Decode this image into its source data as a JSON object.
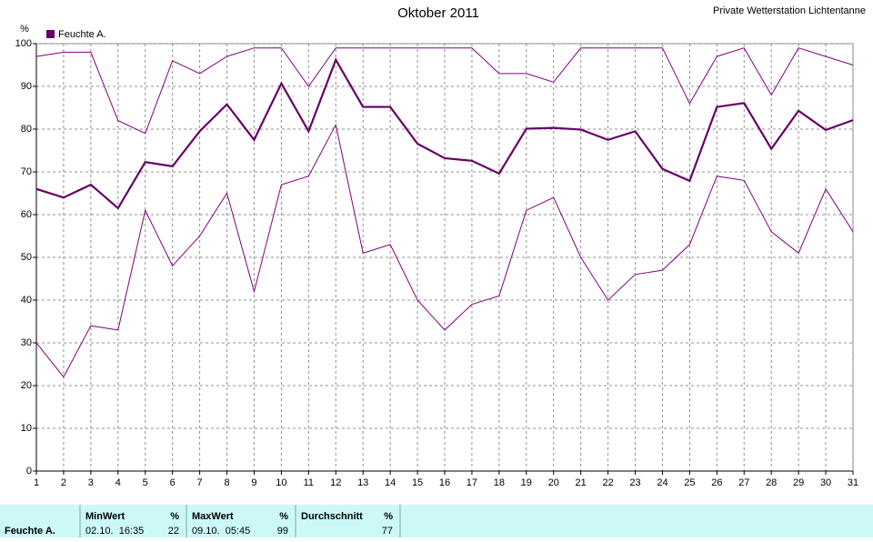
{
  "chart_data": {
    "type": "line",
    "title": "Oktober 2011",
    "subtitle": "Private Wetterstation Lichtentanne",
    "y_label": "%",
    "x": [
      1,
      2,
      3,
      4,
      5,
      6,
      7,
      8,
      9,
      10,
      11,
      12,
      13,
      14,
      15,
      16,
      17,
      18,
      19,
      20,
      21,
      22,
      23,
      24,
      25,
      26,
      27,
      28,
      29,
      30,
      31
    ],
    "series": [
      {
        "name": "Feuchte A.",
        "color": "#660066",
        "values": [
          66,
          64,
          67,
          61.5,
          72.3,
          71.3,
          79.5,
          85.8,
          77.5,
          90.7,
          79.5,
          96.2,
          85.2,
          85.2,
          76.6,
          73.2,
          72.6,
          69.6,
          80.1,
          80.3,
          79.9,
          77.5,
          79.5,
          70.7,
          67.9,
          85.2,
          86.1,
          75.4,
          84.3,
          79.8,
          82.1
        ]
      },
      {
        "color": "#800080",
        "values": [
          97,
          98,
          98,
          82,
          79,
          96,
          93,
          97,
          99,
          99,
          90,
          99,
          99,
          99,
          99,
          99,
          99,
          93,
          93,
          91,
          99,
          99,
          99,
          99,
          86,
          97,
          99,
          88,
          99,
          97,
          95
        ]
      },
      {
        "color": "#800080",
        "values": [
          30,
          22,
          34,
          33,
          61,
          48,
          55,
          65,
          42,
          67,
          69,
          81,
          51,
          53,
          40,
          33,
          39,
          41,
          61,
          64,
          50,
          40,
          46,
          47,
          53,
          69,
          68,
          56,
          51,
          66,
          56
        ]
      }
    ],
    "xlim": [
      1,
      31
    ],
    "xticks": [
      1,
      2,
      3,
      4,
      5,
      6,
      7,
      8,
      9,
      10,
      11,
      12,
      13,
      14,
      15,
      16,
      17,
      18,
      19,
      20,
      21,
      22,
      23,
      24,
      25,
      26,
      27,
      28,
      29,
      30,
      31
    ],
    "ylim": [
      0,
      100
    ],
    "yticks": [
      0,
      10,
      20,
      30,
      40,
      50,
      60,
      70,
      80,
      90,
      100
    ],
    "grid": true,
    "legend": "top-left"
  },
  "summary": {
    "label": "Feuchte A.",
    "columns": [
      {
        "header": "MinWert",
        "unit": "%",
        "time": "02.10.  16:35",
        "value": "22"
      },
      {
        "header": "MaxWert",
        "unit": "%",
        "time": "09.10.  05:45",
        "value": "99"
      },
      {
        "header": "Durchschnitt",
        "unit": "%",
        "time": "",
        "value": "77"
      }
    ]
  }
}
